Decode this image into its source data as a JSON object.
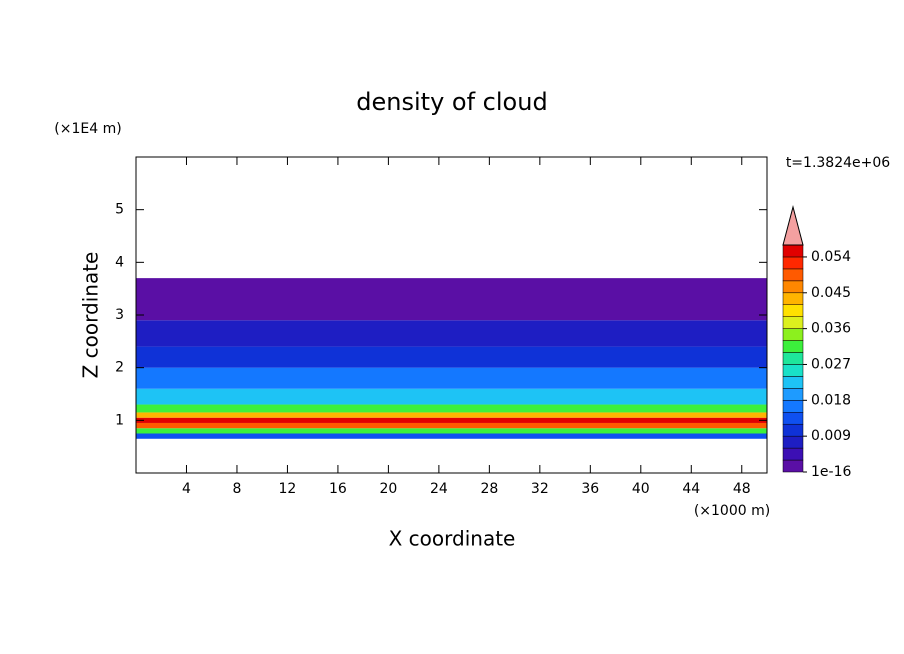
{
  "chart_data": {
    "type": "contourf",
    "title": "density of cloud",
    "x_label": "X coordinate",
    "y_label": "Z coordinate",
    "x_unit": "(×1000 m)",
    "y_unit": "(×1E4 m)",
    "time_label": "t=1.3824e+06",
    "xlim": [
      0,
      50
    ],
    "ylim": [
      0,
      6
    ],
    "xticks": [
      4,
      8,
      12,
      16,
      20,
      24,
      28,
      32,
      36,
      40,
      44,
      48
    ],
    "yticks": [
      1,
      2,
      3,
      4,
      5
    ],
    "z_edges": [
      0.65,
      0.75,
      0.85,
      0.95,
      1.05,
      1.15,
      1.3,
      1.6,
      2.0,
      2.4,
      2.9,
      3.7
    ],
    "values": [
      0.012,
      0.03,
      0.05,
      0.055,
      0.042,
      0.03,
      0.021,
      0.016,
      0.011,
      0.007,
      0.002
    ],
    "colorbar": {
      "levels": [
        1e-16,
        0.003,
        0.006,
        0.009,
        0.012,
        0.015,
        0.018,
        0.021,
        0.024,
        0.027,
        0.03,
        0.033,
        0.036,
        0.039,
        0.042,
        0.045,
        0.048,
        0.051,
        0.054,
        0.057
      ],
      "colors": [
        "#5a0fa5",
        "#3c0fb4",
        "#1e1ec3",
        "#0f32d7",
        "#0f50f0",
        "#1478ff",
        "#1e9bff",
        "#1ec3f5",
        "#19e1c8",
        "#1ee69b",
        "#3cf03c",
        "#8cf01e",
        "#dcf01e",
        "#ffe100",
        "#ffb400",
        "#ff8700",
        "#ff5a00",
        "#ff2800",
        "#e10000"
      ],
      "extend_color": "#f4a0a0",
      "ticks": [
        1e-16,
        0.009,
        0.018,
        0.027,
        0.036,
        0.045,
        0.054
      ]
    }
  }
}
